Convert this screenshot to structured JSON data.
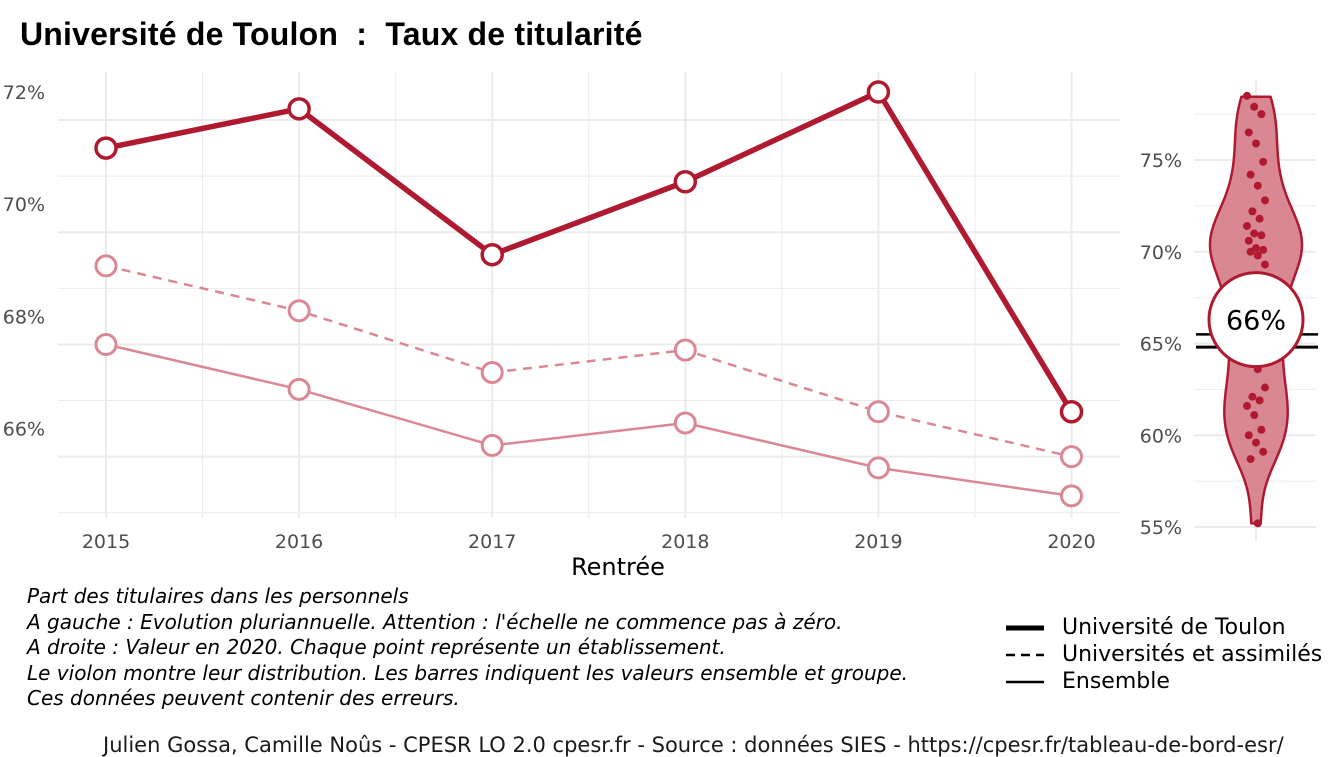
{
  "title": "Université de Toulon  :  Taux de titularité",
  "colors": {
    "main": "#b01a30",
    "faded": "#d98894",
    "violin_fill": "#d67a88",
    "grid": "#ebebeb"
  },
  "chart_data": [
    {
      "type": "line",
      "xlabel": "Rentrée",
      "ylabel": "",
      "x": [
        "2015",
        "2016",
        "2017",
        "2018",
        "2019",
        "2020"
      ],
      "ylim": [
        64.5,
        72.4
      ],
      "yticks": [
        66,
        68,
        70,
        72
      ],
      "ytick_labels": [
        "66%",
        "68%",
        "70%",
        "72%"
      ],
      "grid": true,
      "series": [
        {
          "name": "Université de Toulon",
          "style": "solid-thick",
          "values": [
            71.0,
            71.7,
            69.1,
            70.4,
            72.0,
            66.3
          ]
        },
        {
          "name": "Universités et assimilés",
          "style": "dashed",
          "values": [
            68.9,
            68.1,
            67.0,
            67.4,
            66.3,
            65.5
          ]
        },
        {
          "name": "Ensemble",
          "style": "solid-thin",
          "values": [
            67.5,
            66.7,
            65.7,
            66.1,
            65.3,
            64.8
          ]
        }
      ]
    },
    {
      "type": "violin",
      "ylim": [
        54.5,
        79
      ],
      "yticks": [
        55,
        60,
        65,
        70,
        75
      ],
      "ytick_labels": [
        "55%",
        "60%",
        "65%",
        "70%",
        "75%"
      ],
      "highlight_value": 66.3,
      "highlight_label": "66%",
      "reference_lines": [
        {
          "series": "Universités et assimilés",
          "value": 65.5
        },
        {
          "series": "Ensemble",
          "value": 64.8
        }
      ],
      "points": [
        78.5,
        77.9,
        77.5,
        76.5,
        75.9,
        74.9,
        74.2,
        73.6,
        72.8,
        72.2,
        71.8,
        71.4,
        71.0,
        70.9,
        70.6,
        70.2,
        70.1,
        70.0,
        69.8,
        69.3,
        68.7,
        68.3,
        67.8,
        67.1,
        66.5,
        65.9,
        65.4,
        64.8,
        64.2,
        63.6,
        62.6,
        62.1,
        61.9,
        61.6,
        61.1,
        60.3,
        60.0,
        59.6,
        59.1,
        58.7,
        55.2
      ]
    }
  ],
  "caption": [
    "Part des titulaires dans les personnels",
    "A gauche : Evolution pluriannuelle. Attention : l'échelle ne commence pas à zéro.",
    "A droite : Valeur en 2020. Chaque point représente un établissement.",
    "Le violon montre leur distribution. Les barres indiquent les valeurs ensemble et groupe.",
    "Ces données peuvent contenir des erreurs."
  ],
  "legend": [
    {
      "label": "Université de Toulon"
    },
    {
      "label": "Universités et assimilés"
    },
    {
      "label": "Ensemble"
    }
  ],
  "footer": "Julien Gossa, Camille Noûs - CPESR LO 2.0 cpesr.fr - Source : données SIES - https://cpesr.fr/tableau-de-bord-esr/"
}
